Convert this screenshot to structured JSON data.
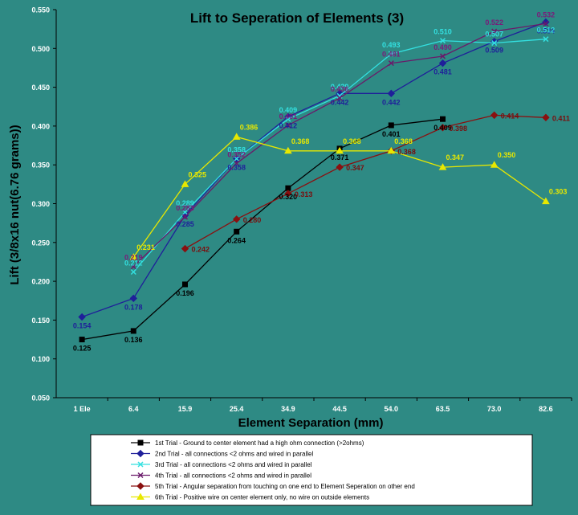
{
  "chart_data": {
    "type": "line",
    "title": "Lift to Seperation of Elements (3)",
    "xlabel": "Element Separation (mm)",
    "ylabel": "Lift (3/8x16 nut(6.76 grams))",
    "categories": [
      "1 Ele",
      "6.4",
      "15.9",
      "25.4",
      "34.9",
      "44.5",
      "54.0",
      "63.5",
      "73.0",
      "82.6"
    ],
    "ylim": [
      0.05,
      0.55
    ],
    "yticks": [
      "0.050",
      "0.100",
      "0.150",
      "0.200",
      "0.250",
      "0.300",
      "0.350",
      "0.400",
      "0.450",
      "0.500",
      "0.550"
    ],
    "grid": false,
    "legend_position": "bottom",
    "series": [
      {
        "name": "1st Trial - Ground to center element had a high ohm connection (>2ohms)",
        "color": "#000000",
        "marker": "square",
        "values": [
          0.125,
          0.136,
          0.196,
          0.264,
          0.32,
          0.371,
          0.401,
          0.409,
          null,
          null
        ],
        "labels": [
          "0.125",
          "0.136",
          "0.196",
          "0.264",
          "0.320",
          "0.371",
          "0.401",
          "0.409",
          null,
          null
        ]
      },
      {
        "name": "2nd Trial - all connections <2 ohms and wired in parallel",
        "color": "#1f1f9a",
        "marker": "diamond",
        "values": [
          0.154,
          0.178,
          0.285,
          0.358,
          0.412,
          0.442,
          0.442,
          0.481,
          0.509,
          0.534
        ],
        "labels": [
          "0.154",
          "0.178",
          "0.285",
          "0.358",
          "0.412",
          "0.442",
          "0.442",
          "0.481",
          "0.509",
          "0.534"
        ]
      },
      {
        "name": "3rd Trial - all connections <2 ohms and wired in parallel",
        "color": "#33e0e0",
        "marker": "x",
        "values": [
          null,
          0.212,
          0.289,
          0.358,
          0.409,
          0.439,
          0.493,
          0.51,
          0.507,
          0.512
        ],
        "labels": [
          null,
          "0.212",
          "0.289",
          "0.358",
          "0.409",
          "0.439",
          "0.493",
          "0.510",
          "0.507",
          "0.512"
        ]
      },
      {
        "name": "4th Trial - all connections <2 ohms and wired in parallel",
        "color": "#6a1a6a",
        "marker": "x",
        "values": [
          null,
          0.219,
          0.283,
          0.352,
          0.401,
          0.436,
          0.481,
          0.49,
          0.522,
          0.532
        ],
        "labels": [
          null,
          "0.219",
          "0.283",
          "0.352",
          "0.401",
          "0.436",
          "0.481",
          "0.490",
          "0.522",
          "0.532"
        ]
      },
      {
        "name": "5th Trial - Angular separation from touching on one end to Element Seperation on other end",
        "color": "#8a1010",
        "marker": "diamond",
        "values": [
          null,
          null,
          0.242,
          0.28,
          0.313,
          0.347,
          0.368,
          0.398,
          0.414,
          0.411
        ],
        "labels": [
          null,
          null,
          "0.242",
          "0.280",
          "0.313",
          "0.347",
          "0.368",
          "0.398",
          "0.414",
          "0.411"
        ]
      },
      {
        "name": "6th Trial - Positive wire on center element only, no wire on outside elements",
        "color": "#e8e800",
        "marker": "triangle",
        "values": [
          null,
          0.231,
          0.325,
          0.386,
          0.368,
          0.368,
          0.368,
          0.347,
          0.35,
          0.303
        ],
        "labels": [
          null,
          "0.231",
          "0.325",
          "0.386",
          "0.368",
          "0.368",
          "0.368",
          "0.347",
          "0.350",
          "0.303"
        ]
      }
    ]
  }
}
